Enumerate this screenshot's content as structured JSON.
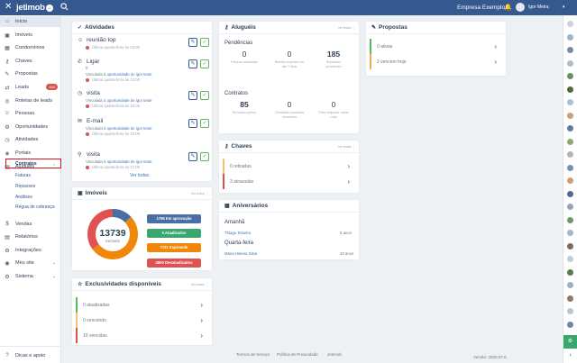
{
  "topbar": {
    "close_icon": "✕",
    "logo": "jetimob",
    "logo_badge": "⌂",
    "company": "Empresa Exemplo",
    "user_name": "Igor Meira",
    "bell": "🔔",
    "caret": "▾"
  },
  "sidebar": {
    "items": [
      {
        "label": "Início",
        "icon": "⌂"
      },
      {
        "label": "Imóveis",
        "icon": "▣"
      },
      {
        "label": "Condomínios",
        "icon": "▦"
      },
      {
        "label": "Chaves",
        "icon": "⚷"
      },
      {
        "label": "Propostas",
        "icon": "✎"
      },
      {
        "label": "Leads",
        "icon": "⇄",
        "badge": "164"
      },
      {
        "label": "Roletas de leads",
        "icon": "◎"
      },
      {
        "label": "Pessoas",
        "icon": "☺"
      },
      {
        "label": "Oportunidades",
        "icon": "⚙"
      },
      {
        "label": "Atividades",
        "icon": "◷"
      },
      {
        "label": "Portais",
        "icon": "◈"
      },
      {
        "label": "Aluguéis",
        "icon": "▤",
        "chevron": "⌃"
      }
    ],
    "sub_items": [
      "Contratos",
      "Faturas",
      "Repasses",
      "Análises",
      "Régua de cobrança"
    ],
    "items2": [
      {
        "label": "Vendas",
        "icon": "$"
      },
      {
        "label": "Relatórios",
        "icon": "▤"
      },
      {
        "label": "Integrações",
        "icon": "⚙"
      },
      {
        "label": "Meu site",
        "icon": "◉",
        "chevron": "⌄"
      },
      {
        "label": "Sistema",
        "icon": "⚙",
        "chevron": "⌄"
      }
    ],
    "footer": {
      "label": "Dicas e apoio",
      "icon": "?"
    }
  },
  "activities": {
    "title": "Atividades",
    "more": "Ver todas",
    "items": [
      {
        "icon": "☺",
        "name": "reunião top",
        "sub": "",
        "link": "",
        "date": "Última quarta-feira às 03:00"
      },
      {
        "icon": "✆",
        "name": "Ligar",
        "sub": "0",
        "sub2": "Vinculada à ",
        "link": "oportunidade",
        "link2": "igor teste",
        "date": "Última quarta-feira às 10:00"
      },
      {
        "icon": "◷",
        "name": "visita",
        "sub2": "Vinculada à ",
        "link": "oportunidade",
        "link2": "igor teste",
        "date": "Última quarta-feira às 10:00"
      },
      {
        "icon": "✉",
        "name": "E-mail",
        "sub2": "Vinculada à ",
        "link": "oportunidade",
        "link2": "igor teste",
        "date": "Última quarta-feira às 16:00"
      },
      {
        "icon": "⚲",
        "name": "visita",
        "sub2": "Vinculada à ",
        "link": "oportunidade",
        "link2": "igor teste",
        "date": "Última quarta-feira às 17:00"
      }
    ],
    "see_all": "Ver todas",
    "connector_de": " de "
  },
  "alugueis": {
    "title": "Aluguéis",
    "more": "Ver todos",
    "pendencias_label": "Pendências",
    "pendencias": [
      {
        "value": "0",
        "label": "Faturas atrasadas"
      },
      {
        "value": "0",
        "label": "Boletos expiram em até 7 dias"
      },
      {
        "value": "185",
        "label": "Repasses pendentes"
      }
    ],
    "contratos_label": "Contratos",
    "contratos": [
      {
        "value": "85",
        "label": "Em aviso prévio"
      },
      {
        "value": "0",
        "label": "Garantias locatícias vencendo"
      },
      {
        "value": "0",
        "label": "Para reajustar neste mês"
      }
    ]
  },
  "propostas": {
    "title": "Propostas",
    "rows": [
      {
        "label": "0 ativas",
        "color": "#5cb85c"
      },
      {
        "label": "2 vencem hoje",
        "color": "#f0ad4e"
      }
    ]
  },
  "chaves": {
    "title": "Chaves",
    "more": "Ver todas",
    "rows": [
      {
        "label": "0 retiradas",
        "color": "#f0c36d"
      },
      {
        "label": "3 atrasadas",
        "color": "#d9534f"
      }
    ]
  },
  "imoveis": {
    "title": "Imóveis",
    "more": "Ver todos",
    "total": "13739",
    "total_label": "Imóveis",
    "legend": [
      {
        "label": "1768 Em aprovação",
        "color": "#4a6fa5"
      },
      {
        "label": "5 Atualizados",
        "color": "#3aa76d"
      },
      {
        "label": "7131 Expirando",
        "color": "#f0870a"
      },
      {
        "label": "4800 Desatualizados",
        "color": "#e05252"
      }
    ]
  },
  "chart_data": {
    "type": "pie",
    "categories": [
      "Em aprovação",
      "Atualizados",
      "Expirando",
      "Desatualizados"
    ],
    "values": [
      1768,
      5,
      7131,
      4800
    ],
    "colors": [
      "#4a6fa5",
      "#3aa76d",
      "#f0870a",
      "#e05252"
    ],
    "center_label": "13739"
  },
  "aniversarios": {
    "title": "Aniversários",
    "groups": [
      {
        "head": "Amanhã",
        "name": "Thiago Teixeira",
        "age": "5 anos"
      },
      {
        "head": "Quarta-feira",
        "name": "Maria Helena Silva",
        "age": "32 anos"
      }
    ]
  },
  "exclusividades": {
    "title": "Exclusividades disponíveis",
    "more": "Ver todas",
    "rows": [
      {
        "label": "0 atualizadas",
        "color": "#5cb85c"
      },
      {
        "label": "0 vencendo",
        "color": "#f0c36d"
      },
      {
        "label": "10 vencidas",
        "color": "#d9534f"
      }
    ]
  },
  "footer": {
    "links": [
      "Termos de Serviço",
      "Política de Privacidade",
      "Jetimob"
    ],
    "version": "Versão: 2020.07.0"
  },
  "rightbar": {
    "bottom_icon": "⚙",
    "arrow": "‹",
    "avatar_colors": [
      "#c8d3e3",
      "#9fb3cf",
      "#7a8aa0",
      "#b0bccc",
      "#6d8f5d",
      "#4f6b3a",
      "#a9c2d9",
      "#c7a27e",
      "#5d7d9a",
      "#8fa86e",
      "#b5b5b5",
      "#7392b8",
      "#cf9f7a",
      "#4e6d8c",
      "#95a5b8",
      "#6f9a62",
      "#a7b7c9",
      "#7d6b5c",
      "#c0ccd9",
      "#5a7a4e",
      "#9eb0c4",
      "#8a7a6a",
      "#b8c6d6",
      "#6a8aa8"
    ]
  }
}
